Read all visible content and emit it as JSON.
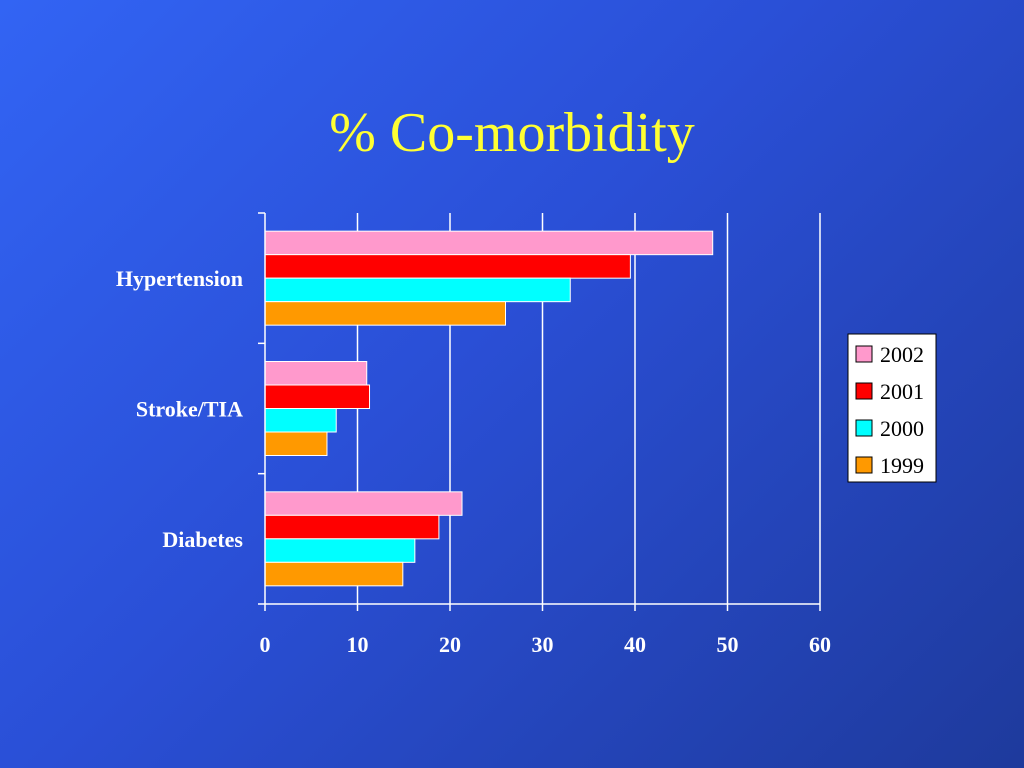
{
  "chart_data": {
    "type": "bar",
    "orientation": "horizontal",
    "title": "% Co-morbidity",
    "categories": [
      "Hypertension",
      "Stroke/TIA",
      "Diabetes"
    ],
    "series": [
      {
        "name": "2002",
        "values": [
          48.4,
          11.0,
          21.3
        ]
      },
      {
        "name": "2001",
        "values": [
          39.5,
          11.3,
          18.8
        ]
      },
      {
        "name": "2000",
        "values": [
          33.0,
          7.7,
          16.2
        ]
      },
      {
        "name": "1999",
        "values": [
          26.0,
          6.7,
          14.9
        ]
      }
    ],
    "xticks": [
      "0",
      "10",
      "20",
      "30",
      "40",
      "50",
      "60"
    ],
    "xlim": [
      0,
      60
    ],
    "grid": true,
    "legend": "right",
    "colors": {
      "2002": "#ff99cc",
      "2001": "#ff0000",
      "2000": "#00ffff",
      "1999": "#ff9900"
    }
  }
}
